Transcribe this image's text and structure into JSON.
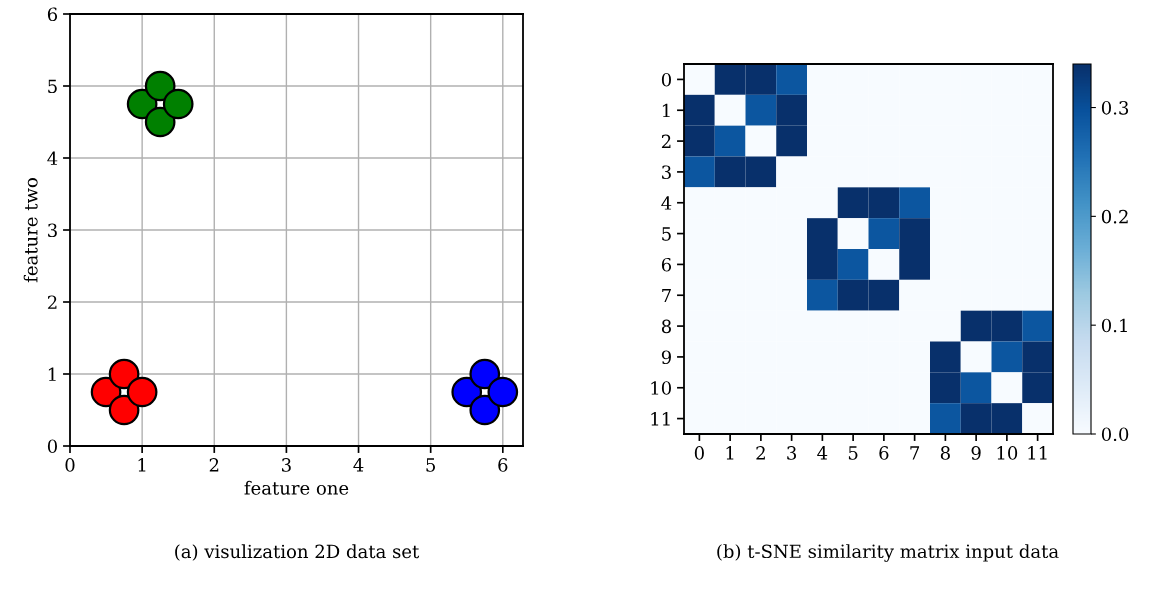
{
  "chart_data": [
    {
      "type": "scatter",
      "title": "(a) visulization 2D data set",
      "xlabel": "feature one",
      "ylabel": "feature two",
      "xlim": [
        0,
        6.28
      ],
      "ylim": [
        0,
        6
      ],
      "xticks": [
        0,
        1,
        2,
        3,
        4,
        5,
        6
      ],
      "yticks": [
        0,
        1,
        2,
        3,
        4,
        5,
        6
      ],
      "grid": true,
      "marker": "circle",
      "series": [
        {
          "color": "#ff0000",
          "x": [
            0.5,
            0.75,
            0.75,
            1.0
          ],
          "values": [
            0.75,
            1.0,
            0.5,
            0.75
          ]
        },
        {
          "color": "#008000",
          "x": [
            1.0,
            1.25,
            1.25,
            1.5
          ],
          "values": [
            4.75,
            5.0,
            4.5,
            4.75
          ]
        },
        {
          "color": "#0000ff",
          "x": [
            5.5,
            5.75,
            5.75,
            6.0
          ],
          "values": [
            0.75,
            1.0,
            0.5,
            0.75
          ]
        }
      ]
    },
    {
      "type": "heatmap",
      "title": "(b) t-SNE similarity matrix input data",
      "categories": [
        "0",
        "1",
        "2",
        "3",
        "4",
        "5",
        "6",
        "7",
        "8",
        "9",
        "10",
        "11"
      ],
      "y_categories": [
        "0",
        "1",
        "2",
        "3",
        "4",
        "5",
        "6",
        "7",
        "8",
        "9",
        "10",
        "11"
      ],
      "clim": [
        0,
        0.34
      ],
      "cticks": [
        {
          "value": 0,
          "label": "0.0"
        },
        0.1,
        0.2,
        0.3
      ],
      "cells": [
        [
          0,
          0.34,
          0.34,
          0.29,
          0,
          0,
          0,
          0,
          0,
          0,
          0,
          0
        ],
        [
          0.34,
          0,
          0.29,
          0.34,
          0,
          0,
          0,
          0,
          0,
          0,
          0,
          0
        ],
        [
          0.34,
          0.29,
          0,
          0.34,
          0,
          0,
          0,
          0,
          0,
          0,
          0,
          0
        ],
        [
          0.29,
          0.34,
          0.34,
          0,
          0,
          0,
          0,
          0,
          0,
          0,
          0,
          0
        ],
        [
          0,
          0,
          0,
          0,
          0,
          0.34,
          0.34,
          0.29,
          0,
          0,
          0,
          0
        ],
        [
          0,
          0,
          0,
          0,
          0.34,
          0,
          0.29,
          0.34,
          0,
          0,
          0,
          0
        ],
        [
          0,
          0,
          0,
          0,
          0.34,
          0.29,
          0,
          0.34,
          0,
          0,
          0,
          0
        ],
        [
          0,
          0,
          0,
          0,
          0.29,
          0.34,
          0.34,
          0,
          0,
          0,
          0,
          0
        ],
        [
          0,
          0,
          0,
          0,
          0,
          0,
          0,
          0,
          0,
          0.34,
          0.34,
          0.29
        ],
        [
          0,
          0,
          0,
          0,
          0,
          0,
          0,
          0,
          0.34,
          0,
          0.29,
          0.34
        ],
        [
          0,
          0,
          0,
          0,
          0,
          0,
          0,
          0,
          0.34,
          0.29,
          0,
          0.34
        ],
        [
          0,
          0,
          0,
          0,
          0,
          0,
          0,
          0,
          0.29,
          0.34,
          0.34,
          0
        ]
      ]
    }
  ]
}
